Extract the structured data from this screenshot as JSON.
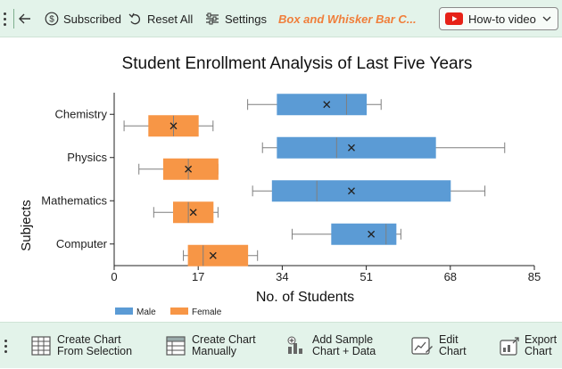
{
  "toolbar": {
    "subscribed_label": "Subscribed",
    "reset_label": "Reset All",
    "settings_label": "Settings",
    "title": "Box and Whisker Bar C...",
    "howto_label": "How-to video"
  },
  "chart_data": {
    "type": "horizontal-box-whisker",
    "title": "Student Enrollment Analysis of Last Five Years",
    "xlabel": "No. of Students",
    "ylabel": "Subjects",
    "xlim": [
      0,
      85
    ],
    "xticks": [
      "0",
      "17",
      "34",
      "51",
      "68",
      "85"
    ],
    "grid": false,
    "legend_position": "bottom-left",
    "categories": [
      "Chemistry",
      "Physics",
      "Mathematics",
      "Computer"
    ],
    "series": [
      {
        "name": "Male",
        "color": "#5b9bd5",
        "boxes": [
          {
            "min": 27,
            "q1": 33,
            "median": 47,
            "q3": 51,
            "max": 54,
            "mean": 43
          },
          {
            "min": 30,
            "q1": 33,
            "median": 45,
            "q3": 65,
            "max": 79,
            "mean": 48
          },
          {
            "min": 28,
            "q1": 32,
            "median": 41,
            "q3": 68,
            "max": 75,
            "mean": 48
          },
          {
            "min": 36,
            "q1": 44,
            "median": 55,
            "q3": 57,
            "max": 58,
            "mean": 52
          }
        ]
      },
      {
        "name": "Female",
        "color": "#f79646",
        "boxes": [
          {
            "min": 2,
            "q1": 7,
            "median": 12,
            "q3": 17,
            "max": 20,
            "mean": 12
          },
          {
            "min": 5,
            "q1": 10,
            "median": 15,
            "q3": 21,
            "max": 21,
            "mean": 15
          },
          {
            "min": 8,
            "q1": 12,
            "median": 15,
            "q3": 20,
            "max": 21,
            "mean": 16
          },
          {
            "min": 14,
            "q1": 15,
            "median": 18,
            "q3": 27,
            "max": 29,
            "mean": 20
          }
        ]
      }
    ]
  },
  "bottom": {
    "create_selection_line1": "Create Chart",
    "create_selection_line2": "From Selection",
    "create_manually_line1": "Create Chart",
    "create_manually_line2": "Manually",
    "add_sample_line1": "Add Sample",
    "add_sample_line2": "Chart + Data",
    "edit_line1": "Edit",
    "edit_line2": "Chart",
    "export_line1": "Export",
    "export_line2": "Chart"
  },
  "icons": {
    "back": "back-arrow-icon",
    "subscribed": "dollar-circle-icon",
    "reset": "undo-icon",
    "settings": "sliders-icon",
    "howto": "youtube-icon",
    "create_selection": "table-grid-icon",
    "create_manually": "table-list-icon",
    "add_sample": "chart-plus-icon",
    "edit": "edit-chart-icon",
    "export": "export-chart-icon"
  }
}
